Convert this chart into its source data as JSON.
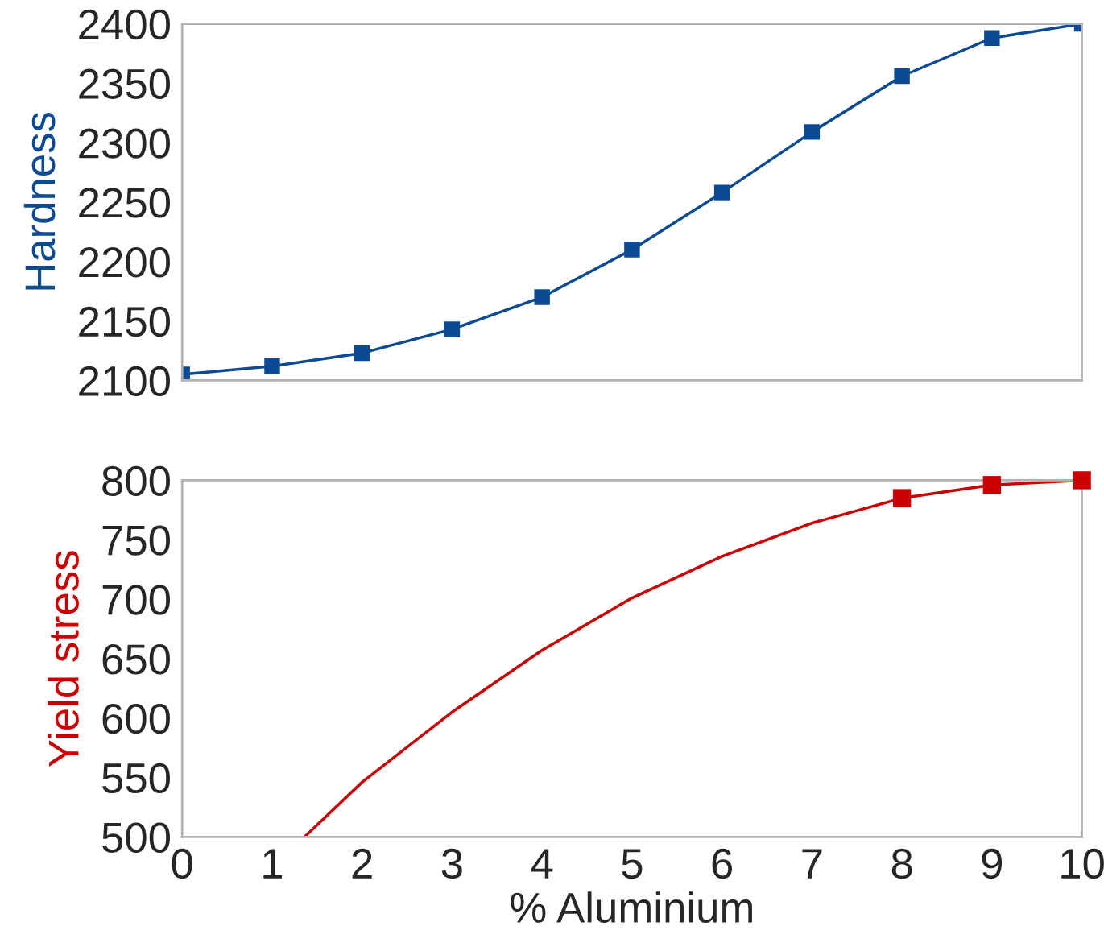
{
  "chart_data": [
    {
      "type": "line",
      "ylabel": "Hardness",
      "x": [
        0,
        1,
        2,
        3,
        4,
        5,
        6,
        7,
        8,
        9,
        10
      ],
      "xlim": [
        0,
        10
      ],
      "xticks": [
        0,
        1,
        2,
        3,
        4,
        5,
        6,
        7,
        8,
        9,
        10
      ],
      "ylim": [
        2100,
        2400
      ],
      "yticks": [
        2100,
        2150,
        2200,
        2250,
        2300,
        2350,
        2400
      ],
      "tick_labels": "y",
      "grid": false,
      "legend": false,
      "series": [
        {
          "color": "#0b4a94",
          "marker": "square",
          "values": [
            2105,
            2112,
            2123,
            2143,
            2170,
            2210,
            2258,
            2309,
            2356,
            2388,
            2400
          ]
        }
      ]
    },
    {
      "type": "line",
      "xlabel": "% Aluminium",
      "ylabel": "Yield stress",
      "xlim": [
        0,
        10
      ],
      "xticks": [
        0,
        1,
        2,
        3,
        4,
        5,
        6,
        7,
        8,
        9,
        10
      ],
      "ylim": [
        500,
        800
      ],
      "yticks": [
        500,
        550,
        600,
        650,
        700,
        750,
        800
      ],
      "grid": false,
      "legend": false,
      "series": [
        {
          "color": "#cc0000",
          "marker": "none",
          "x": [
            1.36,
            2,
            3,
            4,
            5,
            6,
            7,
            8,
            9,
            10
          ],
          "values": [
            500,
            546,
            605,
            657,
            701,
            736,
            764,
            785,
            796,
            800
          ]
        },
        {
          "type": "scatter",
          "color": "#cc0000",
          "marker": "square",
          "x": [
            8,
            9,
            10
          ],
          "values": [
            785,
            796,
            800
          ]
        }
      ]
    }
  ]
}
